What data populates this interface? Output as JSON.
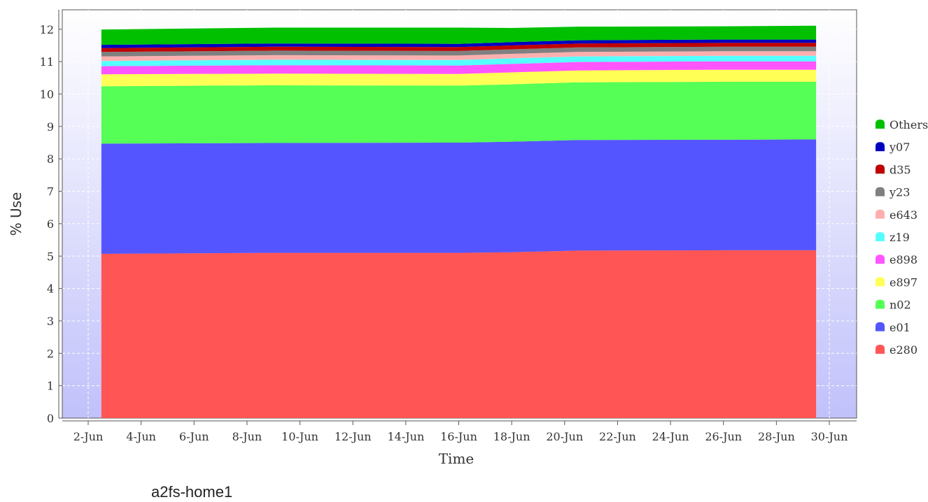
{
  "caption": "a2fs-home1",
  "colors": {
    "grid": "#ffffff",
    "plot_bg_top": "#ffffff",
    "plot_bg_bottom": "#c1c1fb",
    "axis": "#555555"
  },
  "chart_data": {
    "type": "area",
    "stacked": true,
    "xlabel": "Time",
    "ylabel": "% Use",
    "ylim": [
      0,
      12.6
    ],
    "xlim": [
      "2026-06-01",
      "2026-06-30"
    ],
    "grid": true,
    "legend_position": "right",
    "x_ticks": [
      "2-Jun",
      "4-Jun",
      "6-Jun",
      "8-Jun",
      "10-Jun",
      "12-Jun",
      "14-Jun",
      "16-Jun",
      "18-Jun",
      "20-Jun",
      "22-Jun",
      "24-Jun",
      "26-Jun",
      "28-Jun",
      "30-Jun"
    ],
    "y_ticks": [
      "0",
      "1",
      "2",
      "3",
      "4",
      "5",
      "6",
      "7",
      "8",
      "9",
      "10",
      "11",
      "12"
    ],
    "x": [
      "2026-06-02T12:00",
      "2026-06-09",
      "2026-06-16",
      "2026-06-18",
      "2026-06-20T12:00",
      "2026-06-26",
      "2026-06-29T12:00"
    ],
    "series": [
      {
        "name": "e280",
        "color": "#ff5555",
        "values": [
          5.07,
          5.1,
          5.1,
          5.12,
          5.17,
          5.18,
          5.18
        ]
      },
      {
        "name": "e01",
        "color": "#5555ff",
        "values": [
          3.4,
          3.39,
          3.4,
          3.41,
          3.41,
          3.41,
          3.42
        ]
      },
      {
        "name": "n02",
        "color": "#55ff55",
        "values": [
          1.77,
          1.78,
          1.76,
          1.77,
          1.78,
          1.79,
          1.78
        ]
      },
      {
        "name": "e897",
        "color": "#ffff55",
        "values": [
          0.37,
          0.36,
          0.36,
          0.37,
          0.37,
          0.37,
          0.37
        ]
      },
      {
        "name": "e898",
        "color": "#ff55ff",
        "values": [
          0.25,
          0.26,
          0.26,
          0.26,
          0.26,
          0.26,
          0.26
        ]
      },
      {
        "name": "z19",
        "color": "#55ffff",
        "values": [
          0.16,
          0.17,
          0.17,
          0.17,
          0.17,
          0.17,
          0.17
        ]
      },
      {
        "name": "e643",
        "color": "#ffafaf",
        "values": [
          0.14,
          0.14,
          0.14,
          0.14,
          0.14,
          0.14,
          0.14
        ]
      },
      {
        "name": "y23",
        "color": "#808080",
        "values": [
          0.14,
          0.14,
          0.14,
          0.14,
          0.14,
          0.14,
          0.14
        ]
      },
      {
        "name": "d35",
        "color": "#c00000",
        "values": [
          0.12,
          0.12,
          0.12,
          0.12,
          0.12,
          0.12,
          0.12
        ]
      },
      {
        "name": "y07",
        "color": "#0000c0",
        "values": [
          0.1,
          0.1,
          0.1,
          0.1,
          0.1,
          0.1,
          0.1
        ]
      },
      {
        "name": "Others",
        "color": "#00c000",
        "values": [
          0.47,
          0.49,
          0.5,
          0.44,
          0.42,
          0.41,
          0.43
        ]
      }
    ]
  }
}
